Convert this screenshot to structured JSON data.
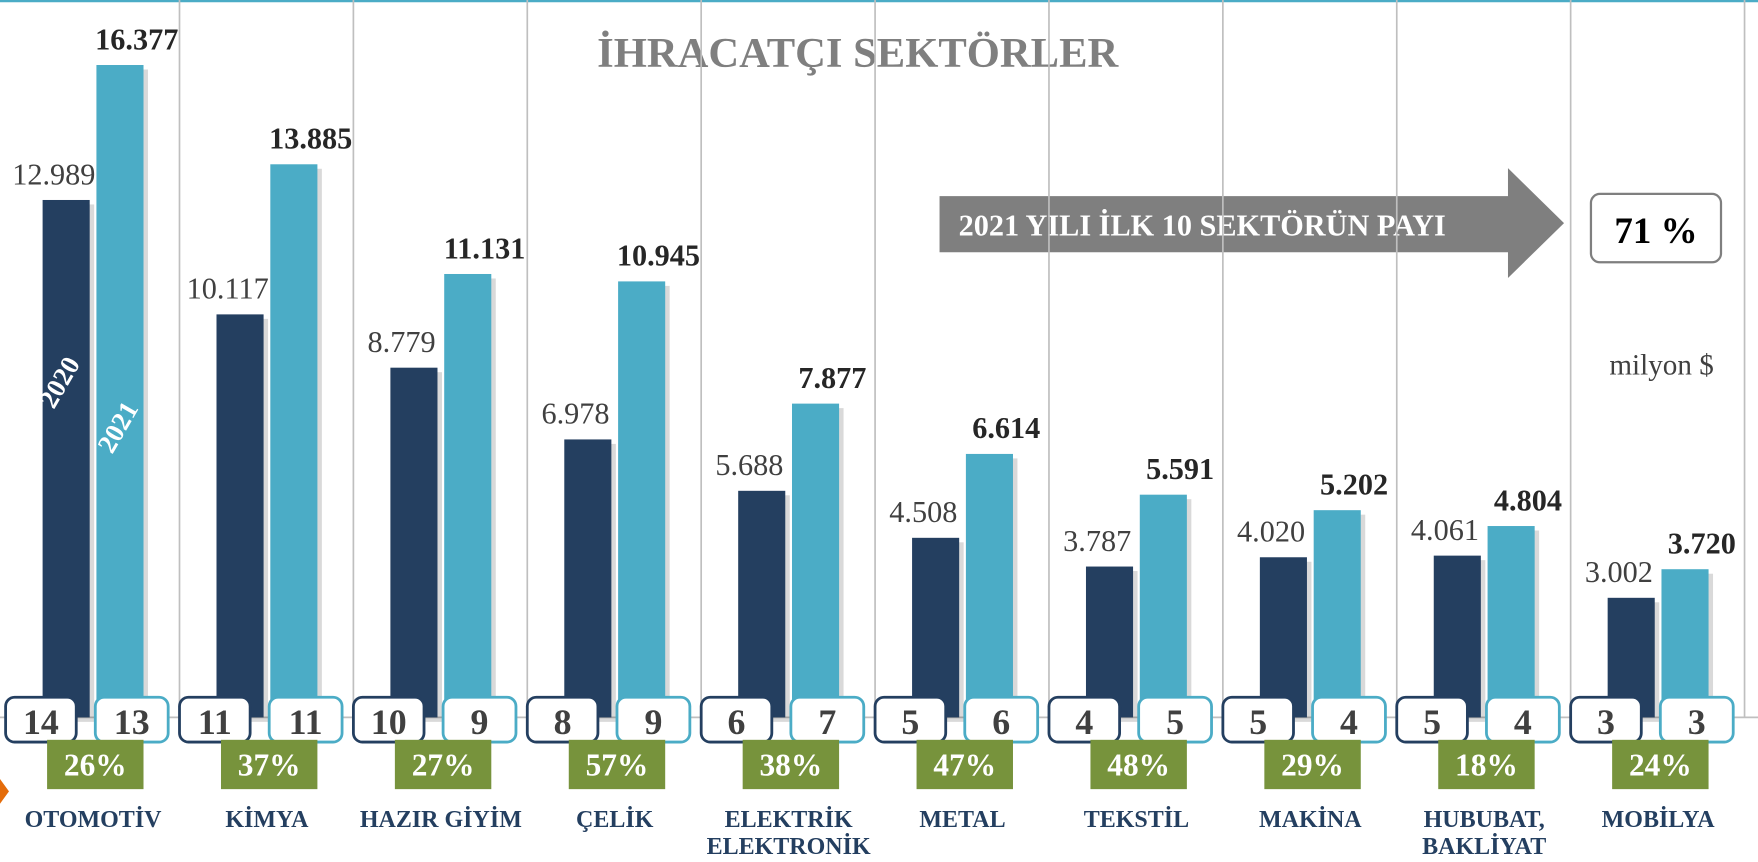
{
  "chart_data": {
    "type": "bar",
    "title": "İHRACATÇI SEKTÖRLER",
    "categories": [
      "OTOMOTİV",
      "KİMYA",
      "HAZIR GİYİM",
      "ÇELİK",
      "ELEKTRİK\nELEKTRONİK",
      "METAL",
      "TEKSTİL",
      "MAKİNA",
      "HUBUBAT,\nBAKLİYAT",
      "MOBİLYA"
    ],
    "series": [
      {
        "name": "2020",
        "color": "#243f60",
        "values": [
          12989,
          10117,
          8779,
          6978,
          5688,
          4508,
          3787,
          4020,
          4061,
          3002
        ],
        "value_labels": [
          "12.989",
          "10.117",
          "8.779",
          "6.978",
          "5.688",
          "4.508",
          "3.787",
          "4.020",
          "4.061",
          "3.002"
        ],
        "shares": [
          14,
          11,
          10,
          8,
          6,
          5,
          4,
          5,
          5,
          3
        ]
      },
      {
        "name": "2021",
        "color": "#4bacc6",
        "values": [
          16377,
          13885,
          11131,
          10945,
          7877,
          6614,
          5591,
          5202,
          4804,
          3720
        ],
        "value_labels": [
          "16.377",
          "13.885",
          "11.131",
          "10.945",
          "7.877",
          "6.614",
          "5.591",
          "5.202",
          "4.804",
          "3.720"
        ],
        "shares": [
          13,
          11,
          9,
          9,
          7,
          6,
          5,
          4,
          4,
          3
        ]
      }
    ],
    "growth": {
      "color": "#77933c",
      "values": [
        26,
        37,
        27,
        57,
        38,
        47,
        48,
        29,
        18,
        24
      ],
      "value_labels": [
        "26%",
        "37%",
        "27%",
        "57%",
        "38%",
        "47%",
        "48%",
        "29%",
        "18%",
        "24%"
      ]
    },
    "annotation": "2021 YILI İLK 10 SEKTÖRÜN PAYI",
    "top10_share": {
      "value": 71,
      "label": "71 %"
    },
    "unit": "milyon $"
  }
}
